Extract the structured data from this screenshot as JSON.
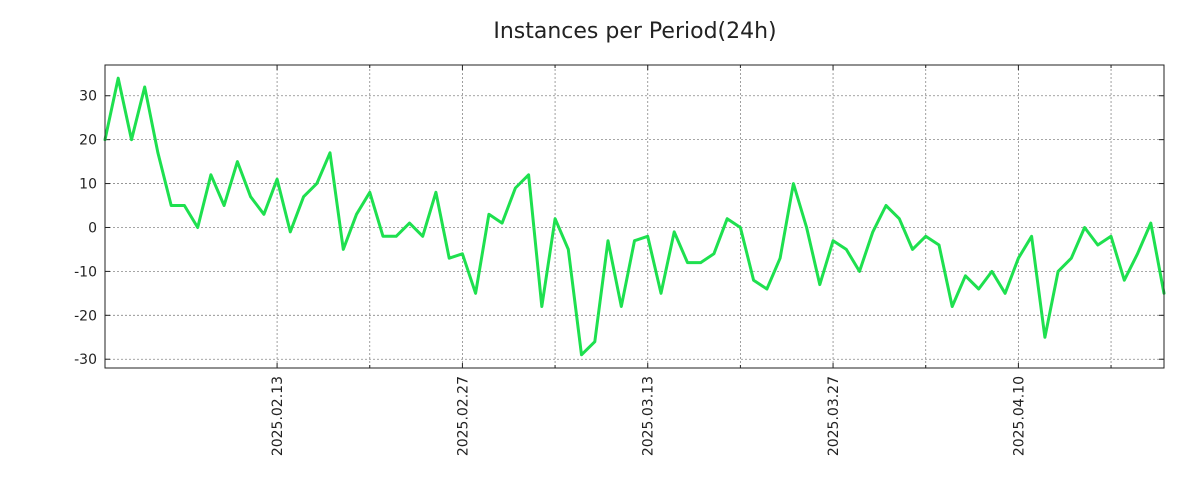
{
  "chart_data": {
    "type": "line",
    "title": "Instances per Period(24h)",
    "xlabel": "",
    "ylabel": "",
    "ylim": [
      -32,
      37
    ],
    "yticks": [
      -30,
      -20,
      -10,
      0,
      10,
      20,
      30
    ],
    "grid": true,
    "x_index_range": [
      0,
      80
    ],
    "xticks": [
      {
        "index": 13,
        "label": "2025.02.13"
      },
      {
        "index": 27,
        "label": "2025.02.27"
      },
      {
        "index": 41,
        "label": "2025.03.13"
      },
      {
        "index": 55,
        "label": "2025.03.27"
      },
      {
        "index": 69,
        "label": "2025.04.10"
      }
    ],
    "minor_x_grid": [
      20,
      34,
      48,
      62,
      76
    ],
    "series": [
      {
        "name": "Instances",
        "color": "#1ee04f",
        "values": [
          20,
          34,
          20,
          32,
          17,
          5,
          5,
          0,
          12,
          5,
          15,
          7,
          3,
          11,
          -1,
          7,
          10,
          17,
          -5,
          3,
          8,
          -2,
          -2,
          1,
          -2,
          8,
          -7,
          -6,
          -15,
          3,
          1,
          9,
          12,
          -18,
          2,
          -5,
          -29,
          -26,
          -3,
          -18,
          -3,
          -2,
          -15,
          -1,
          -8,
          -8,
          -6,
          2,
          0,
          -12,
          -14,
          -7,
          10,
          0,
          -13,
          -3,
          -5,
          -10,
          -1,
          5,
          2,
          -5,
          -2,
          -4,
          -18,
          -11,
          -14,
          -10,
          -15,
          -7,
          -2,
          -25,
          -10,
          -7,
          0,
          -4,
          -2,
          -12,
          -6,
          1,
          -15
        ]
      }
    ]
  }
}
